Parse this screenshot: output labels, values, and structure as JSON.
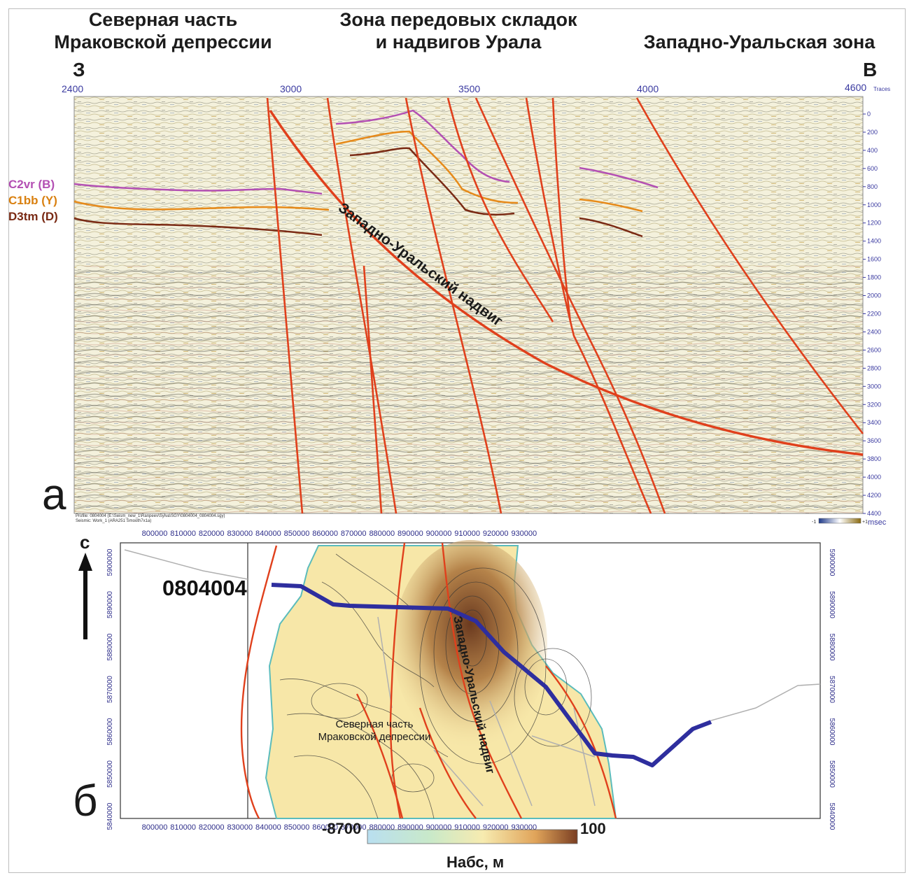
{
  "zones": {
    "left": [
      "Северная часть",
      "Мраковской депрессии"
    ],
    "center": [
      "Зона передовых складок",
      "и надвигов Урала"
    ],
    "right": "Западно-Уральская зона"
  },
  "directions": {
    "west": "З",
    "east": "В"
  },
  "panels": {
    "a": "а",
    "b": "б"
  },
  "seismic": {
    "trace_axis": {
      "ticks": [
        "2400",
        "3000",
        "3500",
        "4000",
        "4600"
      ],
      "unit": "Traces"
    },
    "time_axis": {
      "ticks": [
        "0",
        "200",
        "400",
        "600",
        "800",
        "1000",
        "1200",
        "1400",
        "1600",
        "1800",
        "2000",
        "2200",
        "2400",
        "2600",
        "2800",
        "3000",
        "3200",
        "3400",
        "3600",
        "3800",
        "4000",
        "4200",
        "4400"
      ]
    },
    "horizons": [
      {
        "label": "C2vr (B)",
        "color": "#b34fb3"
      },
      {
        "label": "C1bb (Y)",
        "color": "#e68a1a"
      },
      {
        "label": "D3tm (D)",
        "color": "#7a2a14"
      }
    ],
    "fault_color": "#e0401c",
    "thrust_label": "Западно-Уральский надвиг",
    "footer_line1": "Profile: 0804004 (E:\\Seism_new_1\\Ranpeev\\Sylva\\SGY\\0804004_0804004.sgy)",
    "footer_line2": "Seismic: Work_1 (ARA251 Smooth7x1a)",
    "colorbar_min": "-1",
    "colorbar_max": "+1",
    "time_unit": "msec"
  },
  "map": {
    "x_ticks": [
      "800000",
      "810000",
      "820000",
      "830000",
      "840000",
      "850000",
      "860000",
      "870000",
      "880000",
      "890000",
      "900000",
      "910000",
      "920000",
      "930000"
    ],
    "y_ticks": [
      "5900000",
      "5890000",
      "5880000",
      "5870000",
      "5860000",
      "5850000",
      "5840000"
    ],
    "north_label": "с",
    "profile_id": "0804004",
    "profile_color": "#2e2e9e",
    "thrust_label": "Западно-Уральский надвиг",
    "area_label": [
      "Северная часть",
      "Мраковской депрессии"
    ],
    "legend": {
      "min": "-8700",
      "max": "100",
      "title": "Нaбс, м"
    }
  }
}
